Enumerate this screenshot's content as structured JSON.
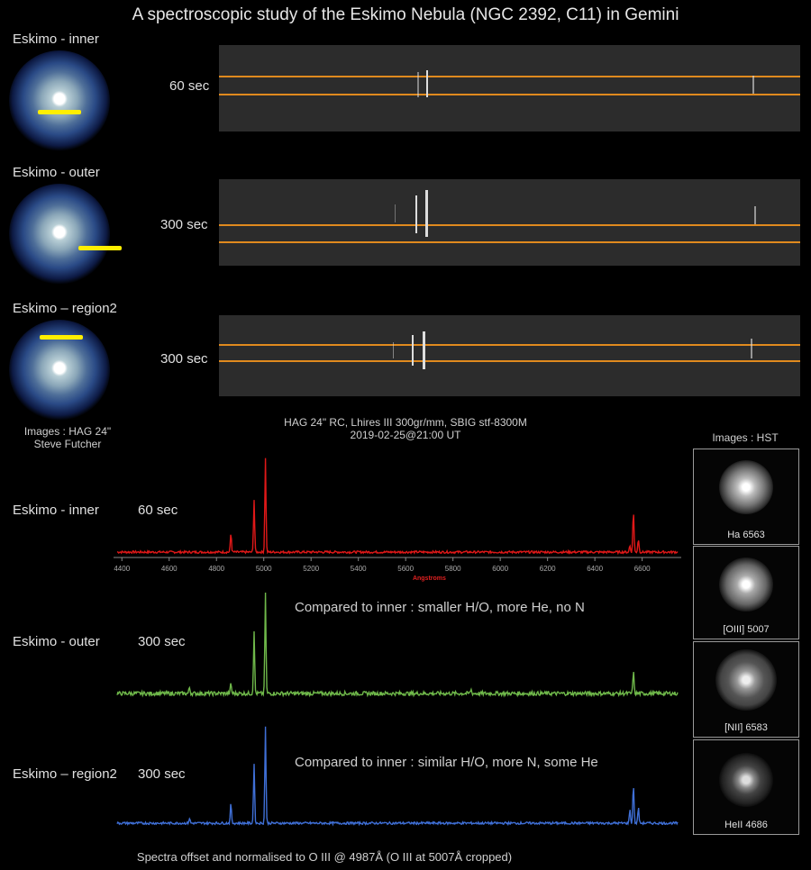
{
  "title": "A spectroscopic study of the Eskimo Nebula (NGC 2392, C11) in Gemini",
  "regions": [
    {
      "label": "Eskimo - inner",
      "exposure": "60 sec"
    },
    {
      "label": "Eskimo - outer",
      "exposure": "300 sec"
    },
    {
      "label": "Eskimo – region2",
      "exposure": "300 sec"
    }
  ],
  "credit_left": [
    "Images : HAG 24\"",
    "Steve Futcher"
  ],
  "instrument": [
    "HAG 24\" RC, Lhires III 300gr/mm, SBIG stf-8300M",
    "2019-02-25@21:00 UT"
  ],
  "hst": {
    "title": "Images : HST",
    "panels": [
      "Ha 6563",
      "[OIII] 5007",
      "[NII] 6583",
      "HeII 4686"
    ]
  },
  "spectra_labels": [
    {
      "label": "Eskimo - inner",
      "exposure": "60 sec"
    },
    {
      "label": "Eskimo - outer",
      "exposure": "300 sec"
    },
    {
      "label": "Eskimo – region2",
      "exposure": "300 sec"
    }
  ],
  "comparisons": [
    "Compared to inner : smaller H/O, more He, no N",
    "Compared to inner : similar H/O, more N, some He"
  ],
  "footer": "Spectra offset and normalised to O III @ 4987Å  (O III at 5007Å cropped)",
  "chart_data": {
    "type": "line",
    "xlabel": "Angstroms",
    "xlim": [
      4380,
      6750
    ],
    "ticks": [
      4400,
      4600,
      4800,
      5000,
      5200,
      5400,
      5600,
      5800,
      6000,
      6200,
      6400,
      6600
    ],
    "series": [
      {
        "color": "#e01818",
        "peaks": [
          [
            4861,
            0.2
          ],
          [
            4959,
            0.56
          ],
          [
            5007,
            1.0
          ],
          [
            6548,
            0.07
          ],
          [
            6563,
            0.44
          ],
          [
            6584,
            0.14
          ]
        ],
        "noise": 0.012
      },
      {
        "color": "#6fb84a",
        "peaks": [
          [
            4686,
            0.06
          ],
          [
            4861,
            0.1
          ],
          [
            4959,
            0.64
          ],
          [
            5007,
            1.0
          ],
          [
            5876,
            0.04
          ],
          [
            6563,
            0.22
          ]
        ],
        "noise": 0.02
      },
      {
        "color": "#3f6fd6",
        "peaks": [
          [
            4686,
            0.05
          ],
          [
            4861,
            0.2
          ],
          [
            4959,
            0.62
          ],
          [
            5007,
            1.0
          ],
          [
            6548,
            0.14
          ],
          [
            6563,
            0.4
          ],
          [
            6584,
            0.16
          ]
        ],
        "noise": 0.012
      }
    ]
  }
}
